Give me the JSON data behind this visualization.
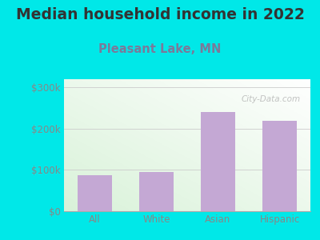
{
  "title": "Median household income in 2022",
  "subtitle": "Pleasant Lake, MN",
  "categories": [
    "All",
    "White",
    "Asian",
    "Hispanic"
  ],
  "values": [
    88000,
    95000,
    240000,
    220000
  ],
  "bar_color": "#c4a8d4",
  "background_color": "#00e8e8",
  "title_color": "#333333",
  "subtitle_color": "#7a7a9a",
  "ytick_labels": [
    "$0",
    "$100k",
    "$200k",
    "$300k"
  ],
  "ytick_values": [
    0,
    100000,
    200000,
    300000
  ],
  "ylim": [
    0,
    320000
  ],
  "watermark": "City-Data.com",
  "title_fontsize": 13.5,
  "subtitle_fontsize": 10.5,
  "tick_fontsize": 8.5,
  "tick_color": "#888888"
}
